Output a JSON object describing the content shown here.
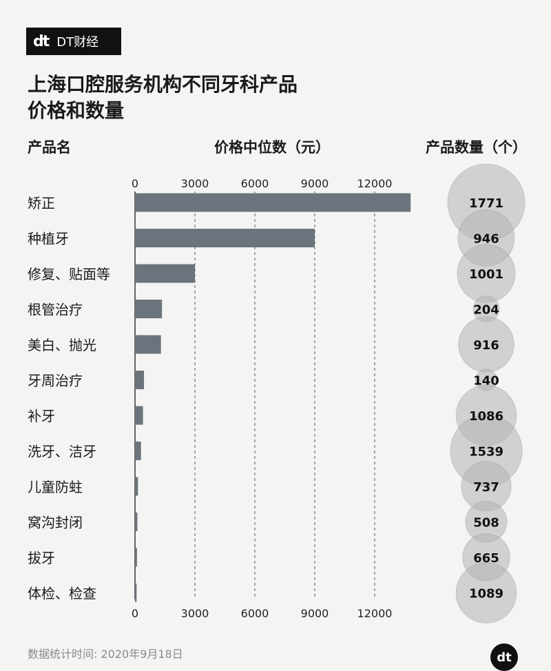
{
  "brand": {
    "mark": "dt",
    "name": "DT财经"
  },
  "title_line1": "上海口腔服务机构不同牙科产品",
  "title_line2": "价格和数量",
  "headers": {
    "product": "产品名",
    "price": "价格中位数（元）",
    "count": "产品数量（个）"
  },
  "footer": "数据统计时间: 2020年9月18日",
  "colors": {
    "bar": "#6b747c",
    "bubble": "#b4b4b4",
    "grid": "#555555"
  },
  "chart_data": {
    "type": "bar",
    "orientation": "horizontal",
    "categories": [
      "矫正",
      "种植牙",
      "修复、贴面等",
      "根管治疗",
      "美白、抛光",
      "牙周治疗",
      "补牙",
      "洗牙、洁牙",
      "儿童防蛀",
      "窝沟封闭",
      "拔牙",
      "体检、检查"
    ],
    "series": [
      {
        "values": [
          13800,
          9000,
          3000,
          1350,
          1300,
          450,
          400,
          300,
          150,
          120,
          100,
          80
        ]
      }
    ],
    "counts": [
      1771,
      946,
      1001,
      204,
      916,
      140,
      1086,
      1539,
      737,
      508,
      665,
      1089
    ],
    "xlim": [
      0,
      14000
    ],
    "xticks": [
      0,
      3000,
      6000,
      9000,
      12000
    ],
    "grid": true
  }
}
